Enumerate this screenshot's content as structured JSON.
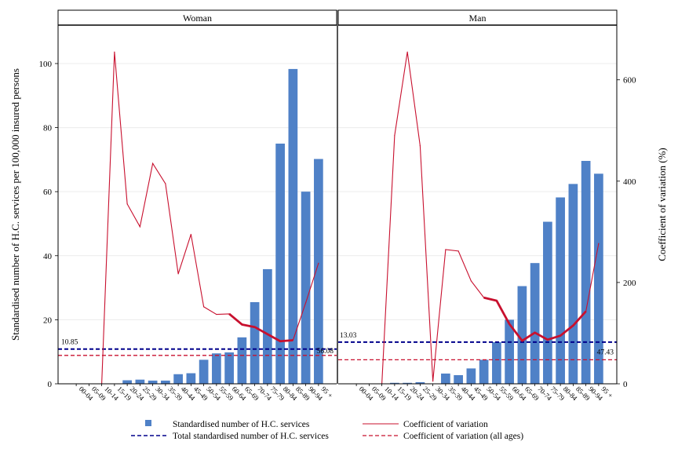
{
  "chart_data": {
    "type": "bar",
    "categories": [
      "00-04",
      "05-09",
      "10-14",
      "15-19",
      "20-24",
      "25-29",
      "30-34",
      "35-39",
      "40-44",
      "45-49",
      "50-54",
      "55-59",
      "60-64",
      "65-69",
      "70-74",
      "75-79",
      "80-84",
      "85-89",
      "90-94",
      "95 +"
    ],
    "ylabel": "Standardised number of H.C. services per 100,000 insured persons",
    "y2label": "Coefficient of variation (%)",
    "ylim": [
      0,
      112
    ],
    "y2lim": [
      0,
      708
    ],
    "yticks": [
      "0",
      "20",
      "40",
      "60",
      "80",
      "100"
    ],
    "y2ticks": [
      "0",
      "200",
      "400",
      "600"
    ],
    "grid": true,
    "colors": {
      "bar": "#4f81c7",
      "cv_line": "#c8102e",
      "total_line": "#00008b",
      "cv_all_line": "#c8102e"
    },
    "panels": [
      {
        "name": "Woman",
        "values": [
          0,
          0,
          0,
          0,
          1.1,
          1.3,
          1.0,
          1.0,
          3.0,
          3.3,
          7.5,
          9.5,
          9.8,
          14.5,
          25.5,
          35.8,
          75,
          98.3,
          60,
          70.2
        ],
        "cv": [
          null,
          null,
          null,
          655,
          355,
          310,
          435,
          395,
          217,
          295,
          152,
          137,
          138,
          117,
          112,
          98,
          84,
          86,
          160,
          238
        ],
        "cv_bold_range": [
          12,
          17
        ],
        "total": 10.85,
        "total_label": "10.85",
        "cv_all": 56.08,
        "cv_all_label": "56.08"
      },
      {
        "name": "Man",
        "values": [
          0,
          0,
          0,
          0.3,
          0.3,
          0.5,
          0,
          3.2,
          2.7,
          4.8,
          7.5,
          13,
          20,
          30.5,
          37.7,
          50.6,
          58.2,
          62.4,
          69.6,
          65.6
        ],
        "cv": [
          null,
          null,
          null,
          490,
          655,
          470,
          5,
          265,
          262,
          203,
          170,
          164,
          118,
          85,
          101,
          87,
          95,
          115,
          143,
          277
        ],
        "cv_bold_range": [
          10,
          18
        ],
        "total": 13.03,
        "total_label": "13.03",
        "cv_all": 47.43,
        "cv_all_label": "47.43"
      }
    ],
    "legend": {
      "bars": "Standardised number of H.C. services",
      "cv": "Coefficient of variation",
      "total": "Total standardised number of H.C. services",
      "cv_all": "Coefficient of variation (all ages)"
    }
  }
}
